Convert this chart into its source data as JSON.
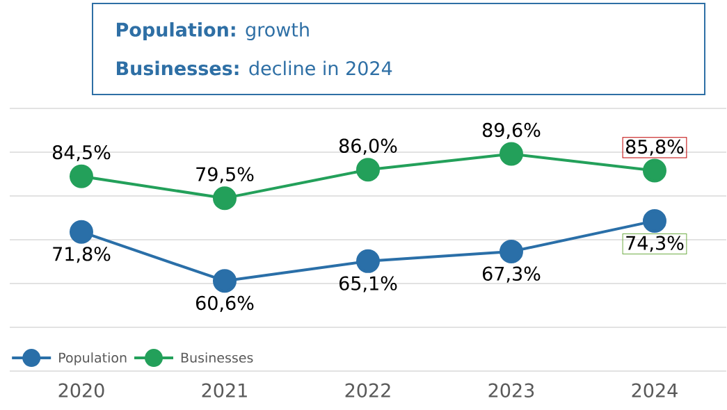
{
  "chart_data": {
    "type": "line",
    "title": "**Population:** growth",
    "subtitle": "**Businesses:** decline in 2024",
    "categories": [
      "2020",
      "2021",
      "2022",
      "2023",
      "2024"
    ],
    "series": [
      {
        "name": "Population",
        "color": "#2a6fa8",
        "values": [
          71.8,
          60.6,
          65.1,
          67.3,
          74.3
        ],
        "value_labels": [
          "71,8%",
          "60,6%",
          "65,1%",
          "67,3%",
          "74,3%"
        ]
      },
      {
        "name": "Businesses",
        "color": "#23a05a",
        "values": [
          84.5,
          79.5,
          86.0,
          89.6,
          85.8
        ],
        "value_labels": [
          "84,5%",
          "79,5%",
          "86,0%",
          "89,6%",
          "85,8%"
        ]
      }
    ],
    "ylim": [
      40,
      100
    ],
    "yticks": [
      {
        "value": 40,
        "label": null
      },
      {
        "value": 50,
        "label": null
      },
      {
        "value": 60,
        "label": null
      },
      {
        "value": 70,
        "label": null
      },
      {
        "value": 80,
        "label": null
      },
      {
        "value": 90,
        "label": null
      },
      {
        "value": 100,
        "label": null
      }
    ],
    "grid": "y",
    "tick_labels": "x",
    "legend": "bottom left",
    "marker": "circle",
    "line_style": "solid"
  }
}
